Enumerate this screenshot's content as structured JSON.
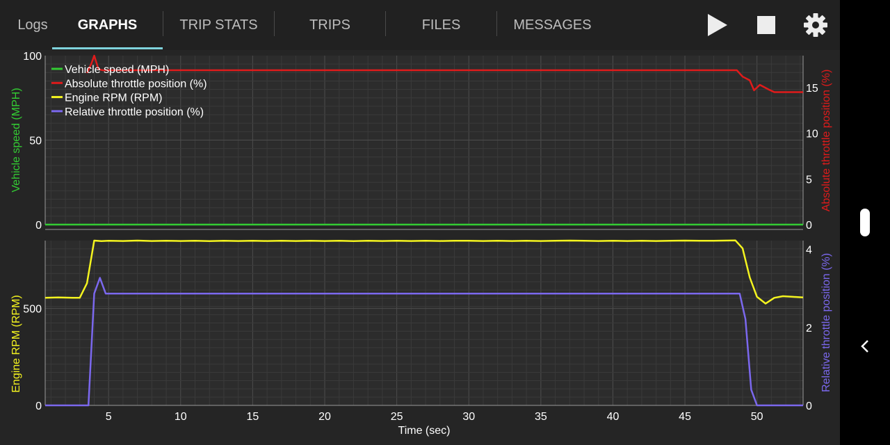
{
  "tabs": [
    {
      "label": "Logs",
      "active": false
    },
    {
      "label": "GRAPHS",
      "active": true
    },
    {
      "label": "TRIP STATS",
      "active": false
    },
    {
      "label": "TRIPS",
      "active": false
    },
    {
      "label": "FILES",
      "active": false
    },
    {
      "label": "MESSAGES",
      "active": false
    }
  ],
  "toolbar": {
    "play_icon": "play-icon",
    "stop_icon": "stop-icon",
    "settings_icon": "gear-icon"
  },
  "colors": {
    "speed": "#33cc33",
    "abs_throttle": "#e01b1b",
    "rpm": "#f4f41f",
    "rel_throttle": "#7b68ee",
    "indicator": "#7fd3dc"
  },
  "chart_data": {
    "type": "line",
    "xlabel": "Time (sec)",
    "xlim": [
      0.6,
      53.2
    ],
    "xticks": [
      5,
      10,
      15,
      20,
      25,
      30,
      35,
      40,
      45,
      50
    ],
    "legend": {
      "placement": "top-left",
      "entries": [
        "Vehicle speed (MPH)",
        "Absolute throttle position (%)",
        "Engine RPM (RPM)",
        "Relative throttle position (%)"
      ]
    },
    "panels": [
      {
        "left_axis": {
          "label": "Vehicle speed (MPH)",
          "ylim": [
            0,
            100
          ],
          "ticks": [
            "0",
            "50",
            "100"
          ]
        },
        "right_axis": {
          "label": "Absolute throttle position (%)",
          "ylim": [
            0,
            18.5
          ],
          "ticks": [
            "0",
            "5",
            "10",
            "15"
          ]
        },
        "series": [
          {
            "name": "Vehicle speed (MPH)",
            "axis": "left",
            "points": [
              [
                0.6,
                0
              ],
              [
                53.2,
                0
              ]
            ]
          },
          {
            "name": "Absolute throttle position (%)",
            "axis": "right",
            "points": [
              [
                3.5,
                16.6
              ],
              [
                3.8,
                17.6
              ],
              [
                4.0,
                18.5
              ],
              [
                4.3,
                17.0
              ],
              [
                4.6,
                16.9
              ],
              [
                48.6,
                16.9
              ],
              [
                49.0,
                16.2
              ],
              [
                49.5,
                15.8
              ],
              [
                49.8,
                14.7
              ],
              [
                50.2,
                15.3
              ],
              [
                50.8,
                14.8
              ],
              [
                51.2,
                14.5
              ],
              [
                53.2,
                14.5
              ]
            ]
          }
        ]
      },
      {
        "left_axis": {
          "label": "Engine RPM (RPM)",
          "ylim": [
            0,
            850
          ],
          "ticks": [
            "0",
            "500"
          ]
        },
        "right_axis": {
          "label": "Relative throttle position (%)",
          "ylim": [
            0,
            4.2
          ],
          "ticks": [
            "0",
            "2",
            "4"
          ]
        },
        "series": [
          {
            "name": "Engine RPM (RPM)",
            "axis": "left",
            "points": [
              [
                0.6,
                555
              ],
              [
                1.5,
                557
              ],
              [
                2.5,
                555
              ],
              [
                3.0,
                555
              ],
              [
                3.5,
                630
              ],
              [
                4.0,
                850
              ],
              [
                4.5,
                847
              ],
              [
                5,
                849
              ],
              [
                6,
                848
              ],
              [
                7,
                850
              ],
              [
                8,
                848
              ],
              [
                9,
                849
              ],
              [
                10,
                848
              ],
              [
                11,
                849
              ],
              [
                12,
                847
              ],
              [
                13,
                849
              ],
              [
                14,
                848
              ],
              [
                15,
                849
              ],
              [
                16,
                848
              ],
              [
                17,
                849
              ],
              [
                18,
                848
              ],
              [
                19,
                849
              ],
              [
                20,
                848
              ],
              [
                21,
                849
              ],
              [
                22,
                847
              ],
              [
                23,
                849
              ],
              [
                24,
                848
              ],
              [
                25,
                849
              ],
              [
                26,
                848
              ],
              [
                27,
                849
              ],
              [
                28,
                848
              ],
              [
                29,
                849
              ],
              [
                30,
                849
              ],
              [
                31,
                848
              ],
              [
                32,
                849
              ],
              [
                33,
                848
              ],
              [
                34,
                849
              ],
              [
                35,
                848
              ],
              [
                36,
                849
              ],
              [
                37,
                850
              ],
              [
                38,
                849
              ],
              [
                39,
                848
              ],
              [
                40,
                849
              ],
              [
                41,
                848
              ],
              [
                42,
                849
              ],
              [
                43,
                848
              ],
              [
                44,
                849
              ],
              [
                45,
                850
              ],
              [
                46,
                849
              ],
              [
                47,
                849
              ],
              [
                48.5,
                851
              ],
              [
                49.0,
                810
              ],
              [
                49.5,
                660
              ],
              [
                50.0,
                560
              ],
              [
                50.6,
                525
              ],
              [
                51.2,
                555
              ],
              [
                51.8,
                563
              ],
              [
                52.5,
                560
              ],
              [
                53.2,
                557
              ]
            ]
          },
          {
            "name": "Relative throttle position (%)",
            "axis": "right",
            "points": [
              [
                0.6,
                0
              ],
              [
                3.6,
                0
              ],
              [
                4.0,
                2.85
              ],
              [
                4.4,
                3.25
              ],
              [
                4.8,
                2.85
              ],
              [
                48.8,
                2.85
              ],
              [
                49.2,
                2.2
              ],
              [
                49.6,
                0.4
              ],
              [
                50.0,
                0
              ],
              [
                53.2,
                0
              ]
            ]
          }
        ]
      }
    ]
  }
}
